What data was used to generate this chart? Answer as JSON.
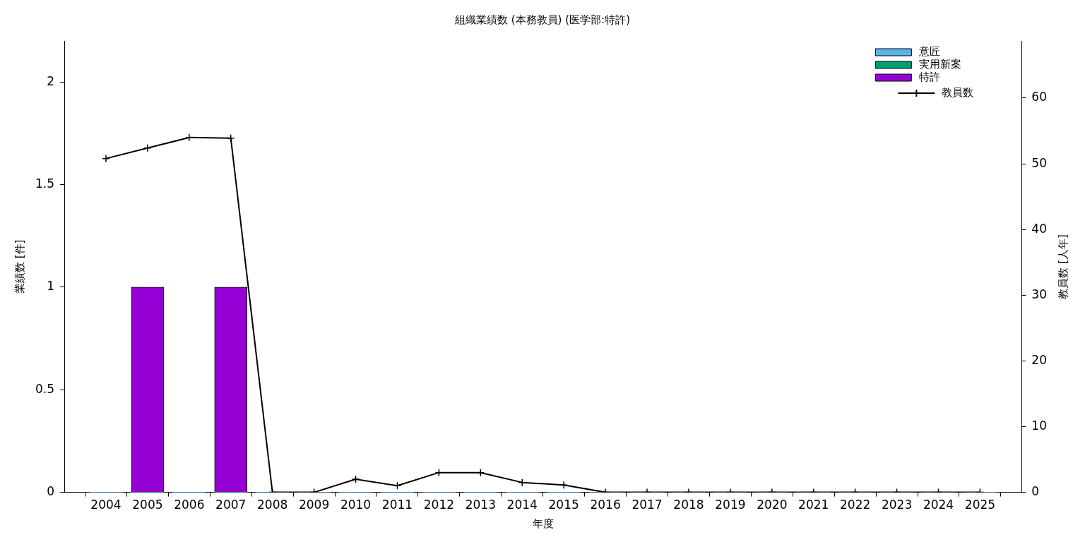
{
  "chart_data": {
    "type": "bar",
    "title": "組織業績数 (本務教員) (医学部:特許)",
    "xlabel": "年度",
    "ylabel": "業績数 [件]",
    "y2label": "教員数 [人年]",
    "categories": [
      "2004",
      "2005",
      "2006",
      "2007",
      "2008",
      "2009",
      "2010",
      "2011",
      "2012",
      "2013",
      "2014",
      "2015",
      "2016",
      "2017",
      "2018",
      "2019",
      "2020",
      "2021",
      "2022",
      "2023",
      "2024",
      "2025"
    ],
    "stacked": true,
    "legend": "top right",
    "grid": false,
    "ylim": [
      0,
      2.2
    ],
    "yticks": [
      0,
      0.5,
      1,
      1.5,
      2
    ],
    "y2lim": [
      0,
      68.7
    ],
    "y2ticks": [
      0,
      10,
      20,
      30,
      40,
      50,
      60
    ],
    "series": [
      {
        "name": "意匠",
        "color": "#56b4e9",
        "values": [
          0,
          0,
          0,
          0,
          0,
          0,
          0,
          0,
          0,
          0,
          0,
          0,
          0,
          0,
          0,
          0,
          0,
          0,
          0,
          0,
          0,
          0
        ]
      },
      {
        "name": "実用新案",
        "color": "#009e73",
        "values": [
          0,
          0,
          0,
          0,
          0,
          0,
          0,
          0,
          0,
          0,
          0,
          0,
          0,
          0,
          0,
          0,
          0,
          0,
          0,
          0,
          0,
          0
        ]
      },
      {
        "name": "特許",
        "color": "#9400d3",
        "values": [
          0,
          1,
          0,
          1,
          0,
          0,
          0,
          0,
          0,
          0,
          0,
          0,
          0,
          0,
          0,
          0,
          0,
          0,
          0,
          0,
          0,
          0
        ]
      },
      {
        "name": "教員数",
        "type": "line",
        "axis": "y2",
        "color": "#000000",
        "marker": "cross",
        "values": [
          50.8,
          52.4,
          54.0,
          53.9,
          0,
          0,
          2,
          1,
          3,
          3,
          1.5,
          1.1,
          0,
          0,
          0,
          0,
          0,
          0,
          0,
          0,
          0,
          0
        ]
      }
    ]
  }
}
